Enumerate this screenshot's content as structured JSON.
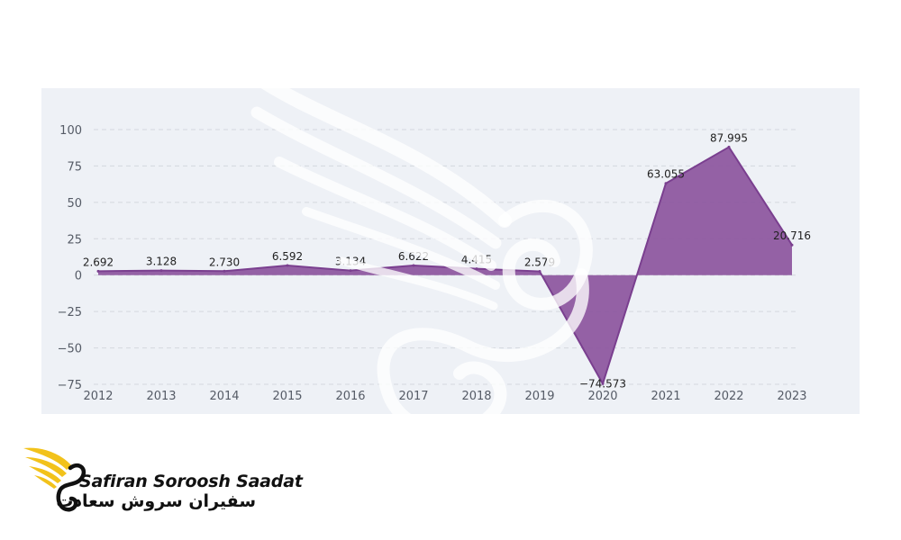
{
  "chart_data": {
    "type": "area",
    "categories": [
      "2012",
      "2013",
      "2014",
      "2015",
      "2016",
      "2017",
      "2018",
      "2019",
      "2020",
      "2021",
      "2022",
      "2023"
    ],
    "series": [
      {
        "values": [
          2.692,
          3.128,
          2.73,
          6.592,
          3.134,
          6.622,
          4.415,
          2.579,
          -74.573,
          63.055,
          87.995,
          20.716
        ]
      }
    ],
    "data_labels": [
      "2.692",
      "3.128",
      "2.730",
      "6.592",
      "3.134",
      "6.622",
      "4.415",
      "2.579",
      "−74.573",
      "63.055",
      "87.995",
      "20.716"
    ],
    "yticks": [
      100,
      75,
      50,
      25,
      0,
      -25,
      -50,
      -75
    ],
    "ytick_labels": [
      "100",
      "75",
      "50",
      "25",
      "0",
      "−25",
      "−50",
      "−75"
    ],
    "ylim": [
      -75,
      100
    ],
    "grid": true,
    "colors": {
      "fill": "#8e58a0",
      "line": "#7a3f8f",
      "grid": "#d4d8de",
      "panel": "#eef1f6"
    },
    "title": "",
    "xlabel": "",
    "ylabel": ""
  },
  "branding": {
    "name_latin": "Safiran Soroosh Saadat",
    "name_persian": "سفیران سروش سعادت",
    "icon": "winged-s-logo-icon",
    "colors": {
      "wing": "#f2c21b",
      "text": "#111111"
    }
  }
}
